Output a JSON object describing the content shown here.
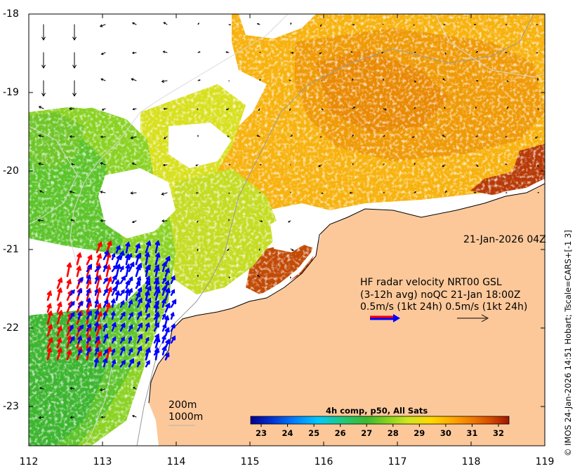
{
  "map": {
    "lon_ticks": [
      "112",
      "113",
      "114",
      "115",
      "116",
      "117",
      "118",
      "119"
    ],
    "lat_ticks": [
      "-18",
      "-19",
      "-20",
      "-21",
      "-22",
      "-23"
    ],
    "lon_range": [
      112,
      119
    ],
    "lat_range": [
      -18,
      -23.5
    ],
    "land_color": "#fcc89a",
    "nodata_color": "#ffffff"
  },
  "annotations": {
    "datetime": "21-Jan-2026 04Z",
    "radar_line1": "HF radar velocity  NRT00 GSL",
    "radar_line2": "(3-12h avg) noQC 21-Jan 18:00Z",
    "radar_line3": "0.5m/s (1kt 24h)   0.5m/s (1kt 24h)",
    "contour_200": "200m",
    "contour_1000": "1000m",
    "credit": "© IMOS 24-Jan-2026 14:51 Hobart; Tscale=CARS+[-1 3]"
  },
  "colorbar": {
    "title": "4h comp, p50, All Sats",
    "ticks": [
      "23",
      "24",
      "25",
      "26",
      "27",
      "28",
      "29",
      "30",
      "31",
      "32"
    ],
    "range": [
      22.6,
      32.4
    ],
    "stops": [
      "#00008f",
      "#0030d0",
      "#0080ff",
      "#00c8ff",
      "#22c878",
      "#3dba2e",
      "#86d31e",
      "#d2e61c",
      "#ffd800",
      "#ffa800",
      "#f07800",
      "#d54a00",
      "#a01400"
    ]
  },
  "radar_arrow_colors": {
    "radar_a": "#ff0000",
    "radar_b": "#0000ff",
    "current": "#000000"
  },
  "icons": {
    "scale_arrow": "arrow-icon"
  }
}
